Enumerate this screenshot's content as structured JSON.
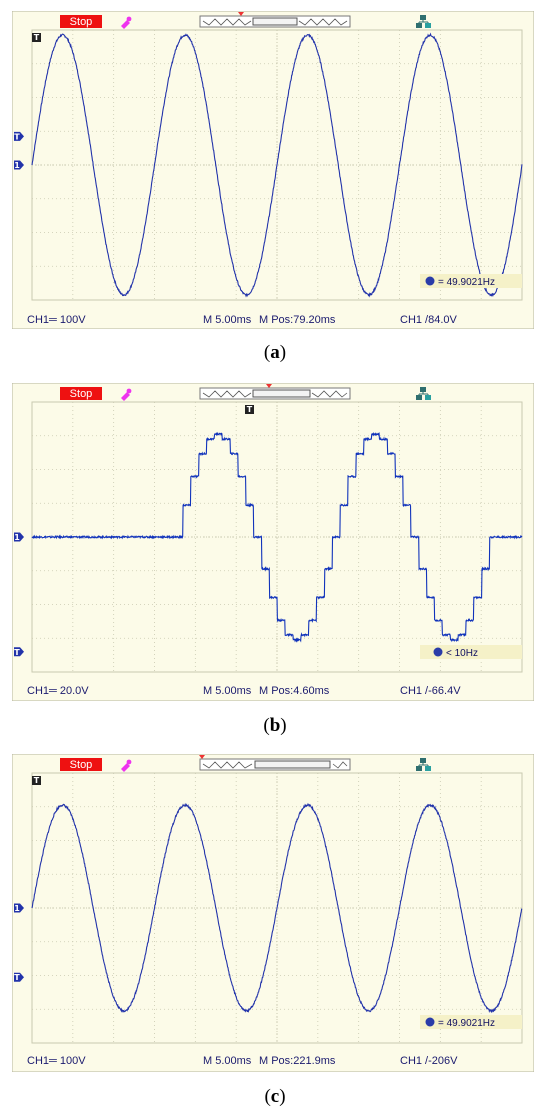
{
  "chart_data": [
    {
      "type": "line",
      "panel_label": "a",
      "run_state": "Stop",
      "frequency_readout": "= 49.9021Hz",
      "status": {
        "ch1_scale": "CH1═ 100V",
        "timebase": "M 5.00ms",
        "mpos": "M Pos:79.20ms",
        "trigger": "CH1 /84.0V"
      },
      "waveform": {
        "shape": "sine",
        "cycles": 4,
        "start_phase_deg": 0,
        "amplitude_divs": 3.85,
        "offset_divs": 0.0
      },
      "grid": {
        "divisions_x": 12,
        "divisions_y": 8
      },
      "markers": {
        "ground_level_divs": 0.0,
        "trigger_level_divs": 0.85
      },
      "colors": {
        "trace": "#2233aa",
        "screen": "#fcfbe8",
        "grid": "#c9c9b0",
        "stop_badge": "#ee1111"
      }
    },
    {
      "type": "line",
      "panel_label": "b",
      "run_state": "Stop",
      "frequency_readout": "< 10Hz",
      "status": {
        "ch1_scale": "CH1═ 20.0V",
        "timebase": "M 5.00ms",
        "mpos": "M Pos:4.60ms",
        "trigger": "CH1 /-66.4V"
      },
      "waveform": {
        "shape": "stepped_sine_burst",
        "cycles": 2,
        "start_divs": 3.6,
        "end_divs": 11.3,
        "amplitude_divs": 3.05,
        "offset_divs": 0.0,
        "steps_per_cycle": 20
      },
      "grid": {
        "divisions_x": 12,
        "divisions_y": 8
      },
      "markers": {
        "ground_level_divs": 0.0,
        "trigger_level_divs": -3.4
      },
      "colors": {
        "trace": "#1133bb",
        "screen": "#fcfbe8",
        "grid": "#c9c9b0",
        "stop_badge": "#ee1111"
      }
    },
    {
      "type": "line",
      "panel_label": "c",
      "run_state": "Stop",
      "frequency_readout": "= 49.9021Hz",
      "status": {
        "ch1_scale": "CH1═ 100V",
        "timebase": "M 5.00ms",
        "mpos": "M Pos:221.9ms",
        "trigger": "CH1 /-206V"
      },
      "waveform": {
        "shape": "sine",
        "cycles": 4,
        "start_phase_deg": 0,
        "amplitude_divs": 3.05,
        "offset_divs": 0.0
      },
      "grid": {
        "divisions_x": 12,
        "divisions_y": 8
      },
      "markers": {
        "ground_level_divs": 0.0,
        "trigger_level_divs": -2.05
      },
      "colors": {
        "trace": "#2233aa",
        "screen": "#fcfbe8",
        "grid": "#c9c9b0",
        "stop_badge": "#ee1111"
      }
    }
  ]
}
